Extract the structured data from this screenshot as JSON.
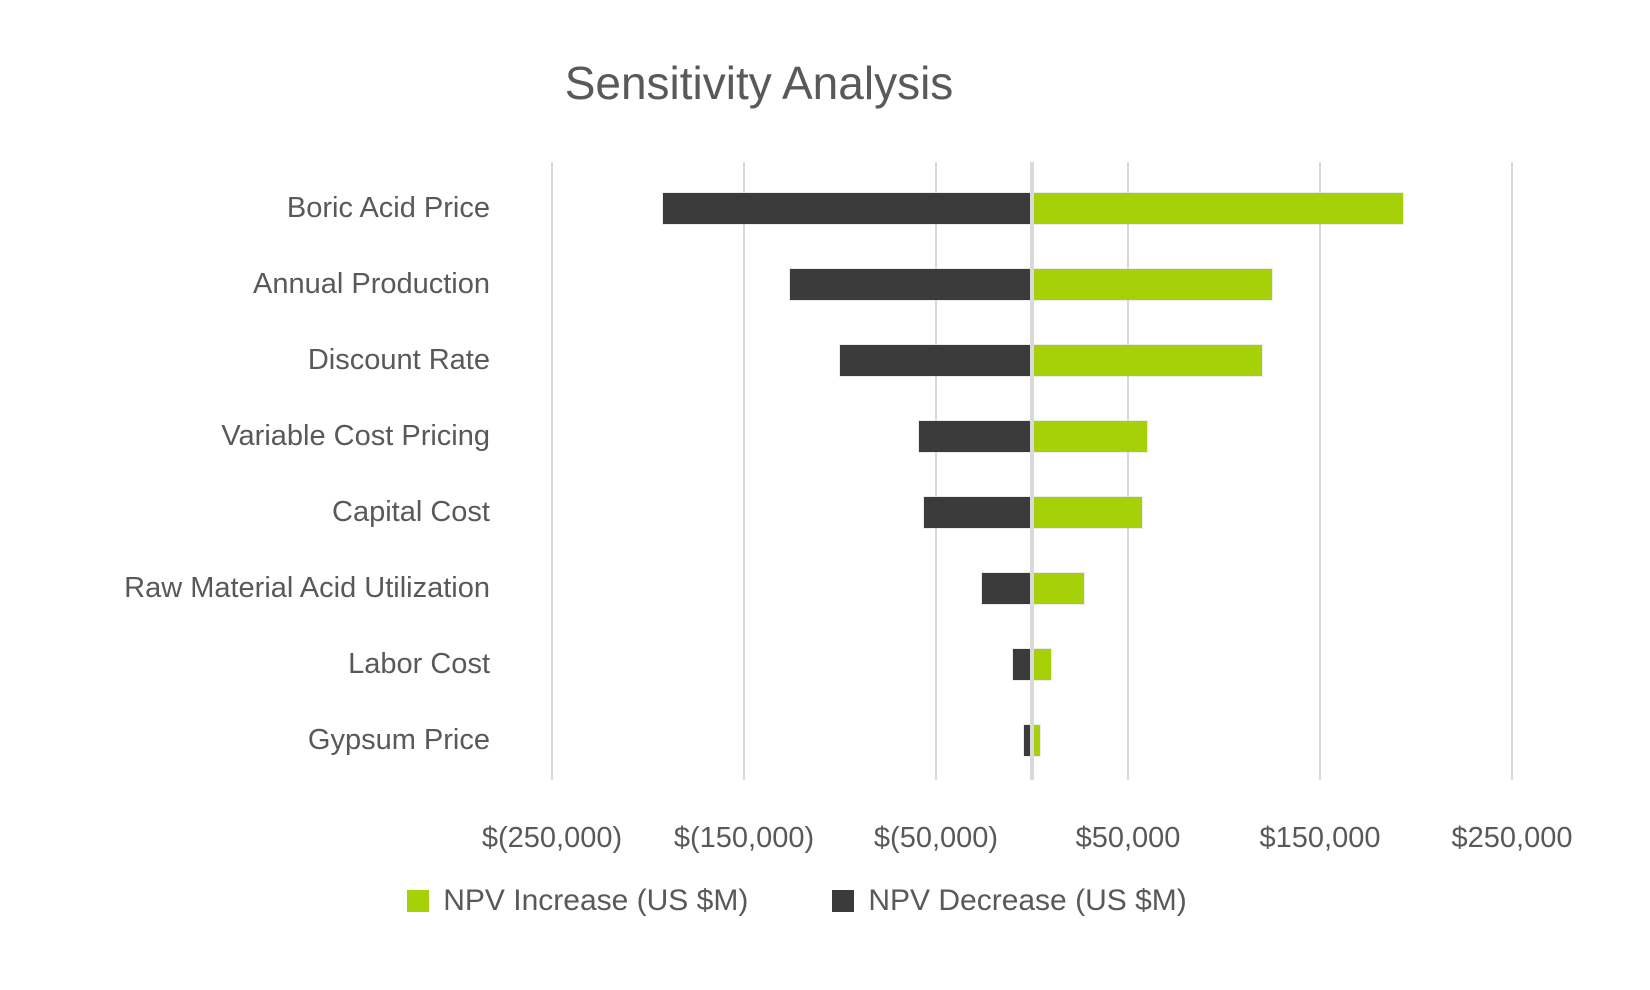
{
  "title": "Sensitivity Analysis",
  "chart_data": {
    "type": "bar",
    "subtype": "tornado",
    "orientation": "horizontal",
    "title": "Sensitivity Analysis",
    "categories": [
      "Boric Acid Price",
      "Annual Production",
      "Discount Rate",
      "Variable Cost Pricing",
      "Capital Cost",
      "Raw Material Acid Utilization",
      "Labor Cost",
      "Gypsum Price"
    ],
    "series": [
      {
        "name": "NPV Increase (US $M)",
        "color": "#a6d007",
        "values": [
          193000,
          125000,
          120000,
          60000,
          57500,
          27000,
          10000,
          4000
        ]
      },
      {
        "name": "NPV Decrease (US $M)",
        "color": "#3b3b3b",
        "values": [
          -192000,
          -126000,
          -100000,
          -59000,
          -56500,
          -26000,
          -10000,
          -4000
        ]
      }
    ],
    "x_axis": {
      "tick_labels": [
        "$(250,000)",
        "$(150,000)",
        "$(50,000)",
        "$50,000",
        "$150,000",
        "$250,000"
      ],
      "tick_values": [
        -250000,
        -150000,
        -50000,
        50000,
        150000,
        250000
      ],
      "range": [
        -300000,
        300000
      ],
      "grid": true,
      "zero_baseline": true
    },
    "legend": {
      "position": "bottom",
      "entries": [
        "NPV Increase (US $M)",
        "NPV Decrease (US $M)"
      ]
    },
    "colors": {
      "increase": "#a6d007",
      "decrease": "#3b3b3b",
      "gridline": "#d9d9d9",
      "text": "#595959",
      "background": "#ffffff"
    }
  }
}
